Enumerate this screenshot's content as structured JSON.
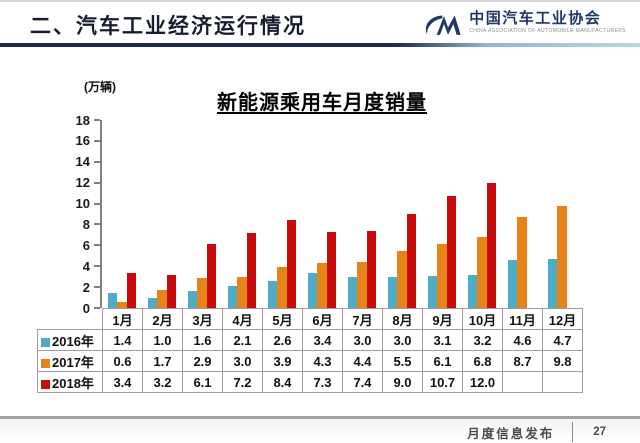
{
  "header": {
    "title": "二、汽车工业经济运行情况",
    "logo": {
      "org_cn": "中国汽车工业协会",
      "org_en": "CHINA ASSOCIATION OF AUTOMOBILE MANUFACTURERS"
    }
  },
  "chart": {
    "title": "新能源乘用车月度销量",
    "unit_label": "(万辆)",
    "y_ticks": [
      18,
      16,
      14,
      12,
      10,
      8,
      6,
      4,
      2,
      0
    ]
  },
  "chart_data": {
    "type": "bar",
    "title": "新能源乘用车月度销量",
    "ylabel": "(万辆)",
    "ylim": [
      0,
      18
    ],
    "grid": false,
    "legend_position": "table-left-column",
    "categories": [
      "1月",
      "2月",
      "3月",
      "4月",
      "5月",
      "6月",
      "7月",
      "8月",
      "9月",
      "10月",
      "11月",
      "12月"
    ],
    "series": [
      {
        "name": "2016年",
        "color": "#4FABC6",
        "values": [
          1.4,
          1.0,
          1.6,
          2.1,
          2.6,
          3.4,
          3.0,
          3.0,
          3.1,
          3.2,
          4.6,
          4.7
        ]
      },
      {
        "name": "2017年",
        "color": "#E8831A",
        "values": [
          0.6,
          1.7,
          2.9,
          3.0,
          3.9,
          4.3,
          4.4,
          5.5,
          6.1,
          6.8,
          8.7,
          9.8
        ]
      },
      {
        "name": "2018年",
        "color": "#C70B0B",
        "values": [
          3.4,
          3.2,
          6.1,
          7.2,
          8.4,
          7.3,
          7.4,
          9.0,
          10.7,
          12.0,
          null,
          null
        ]
      }
    ]
  },
  "footer": {
    "label": "月度信息发布",
    "page": "27"
  }
}
